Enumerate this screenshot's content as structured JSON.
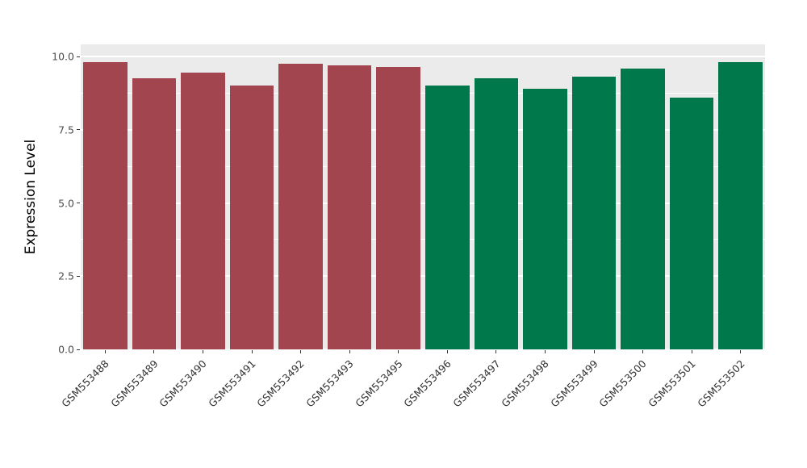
{
  "chart_data": {
    "type": "bar",
    "title": "",
    "xlabel": "",
    "ylabel": "Expression Level",
    "categories": [
      "GSM553488",
      "GSM553489",
      "GSM553490",
      "GSM553491",
      "GSM553492",
      "GSM553493",
      "GSM553495",
      "GSM553496",
      "GSM553497",
      "GSM553498",
      "GSM553499",
      "GSM553500",
      "GSM553501",
      "GSM553502"
    ],
    "values": [
      9.8,
      9.25,
      9.45,
      9.0,
      9.75,
      9.7,
      9.65,
      9.0,
      9.25,
      8.9,
      9.3,
      9.6,
      8.6,
      9.8
    ],
    "bar_colors": [
      "#A2454F",
      "#A2454F",
      "#A2454F",
      "#A2454F",
      "#A2454F",
      "#A2454F",
      "#A2454F",
      "#00784C",
      "#00784C",
      "#00784C",
      "#00784C",
      "#00784C",
      "#00784C",
      "#00784C"
    ],
    "group_colors": {
      "left_group": "#A2454F",
      "right_group": "#00784C"
    },
    "group_split_index": 7,
    "ylim": [
      0,
      10.4
    ],
    "y_ticks": {
      "values": [
        0,
        2.5,
        5.0,
        7.5,
        10.0
      ],
      "labels": [
        "0.0",
        "2.5",
        "5.0",
        "7.5",
        "10.0"
      ]
    },
    "y_minor_ticks": [
      1.25,
      3.75,
      6.25,
      8.75
    ],
    "panel_background": "#EBEBEB",
    "gridline_color": "#FFFFFF",
    "legend": "none",
    "grid": "on"
  }
}
